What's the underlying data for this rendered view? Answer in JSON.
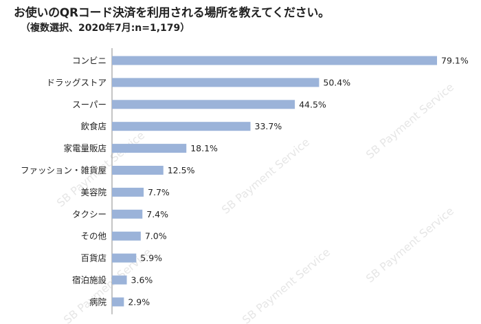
{
  "header": {
    "title": "お使いのQRコード決済を利用される場所を教えてください。",
    "subtitle": "（複数選択、2020年7月:n=1,179）"
  },
  "watermark": {
    "text": "SB Payment Service",
    "color": "#e6e6e6"
  },
  "colors": {
    "bar": "#9bb3d9",
    "axis": "#888888",
    "label": "#222222"
  },
  "chart_data": {
    "type": "bar",
    "orientation": "horizontal",
    "title": "",
    "xlabel": "",
    "ylabel": "",
    "xlim": [
      0,
      80
    ],
    "grid": false,
    "legend": "none",
    "value_suffix": "%",
    "categories": [
      "コンビニ",
      "ドラッグストア",
      "スーパー",
      "飲食店",
      "家電量販店",
      "ファッション・雑貨屋",
      "美容院",
      "タクシー",
      "その他",
      "百貨店",
      "宿泊施設",
      "病院"
    ],
    "values": [
      79.1,
      50.4,
      44.5,
      33.7,
      18.1,
      12.5,
      7.7,
      7.4,
      7.0,
      5.9,
      3.6,
      2.9
    ],
    "value_labels": [
      "79.1%",
      "50.4%",
      "44.5%",
      "33.7%",
      "18.1%",
      "12.5%",
      "7.7%",
      "7.4%",
      "7.0%",
      "5.9%",
      "3.6%",
      "2.9%"
    ]
  }
}
